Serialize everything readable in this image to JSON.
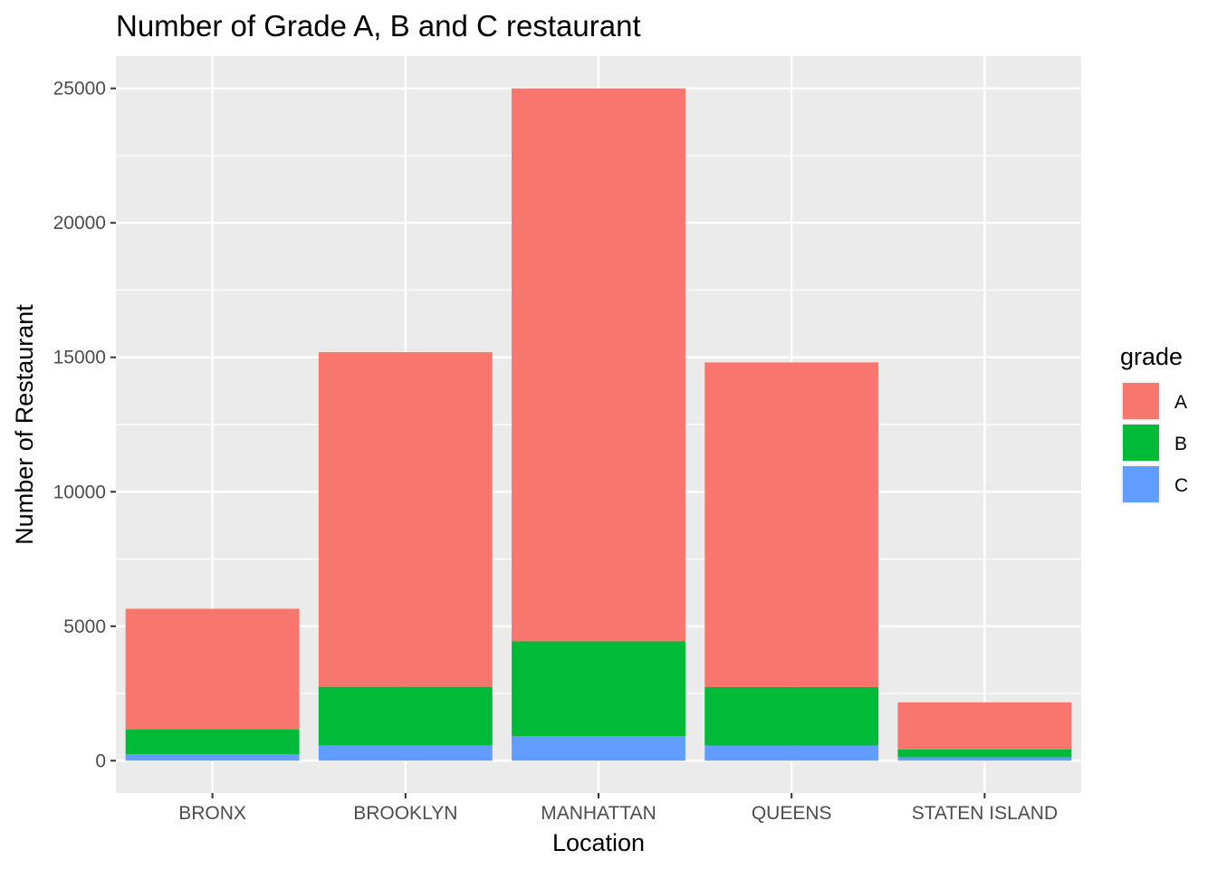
{
  "chart_data": {
    "type": "bar",
    "stacked": true,
    "title": "Number of Grade A, B and C restaurant",
    "xlabel": "Location",
    "ylabel": "Number of Restaurant",
    "categories": [
      "BRONX",
      "BROOKLYN",
      "MANHATTAN",
      "QUEENS",
      "STATEN ISLAND"
    ],
    "series": [
      {
        "name": "A",
        "color": "#F8766D",
        "values": [
          4480,
          12440,
          20560,
          12070,
          1750
        ]
      },
      {
        "name": "B",
        "color": "#00BA38",
        "values": [
          930,
          2180,
          3520,
          2180,
          290
        ]
      },
      {
        "name": "C",
        "color": "#619CFF",
        "values": [
          240,
          570,
          920,
          560,
          130
        ]
      }
    ],
    "ylim": [
      -1200,
      26200
    ],
    "yticks": [
      0,
      5000,
      10000,
      15000,
      20000,
      25000
    ],
    "grid": true,
    "legend": {
      "title": "grade",
      "position": "right"
    }
  }
}
